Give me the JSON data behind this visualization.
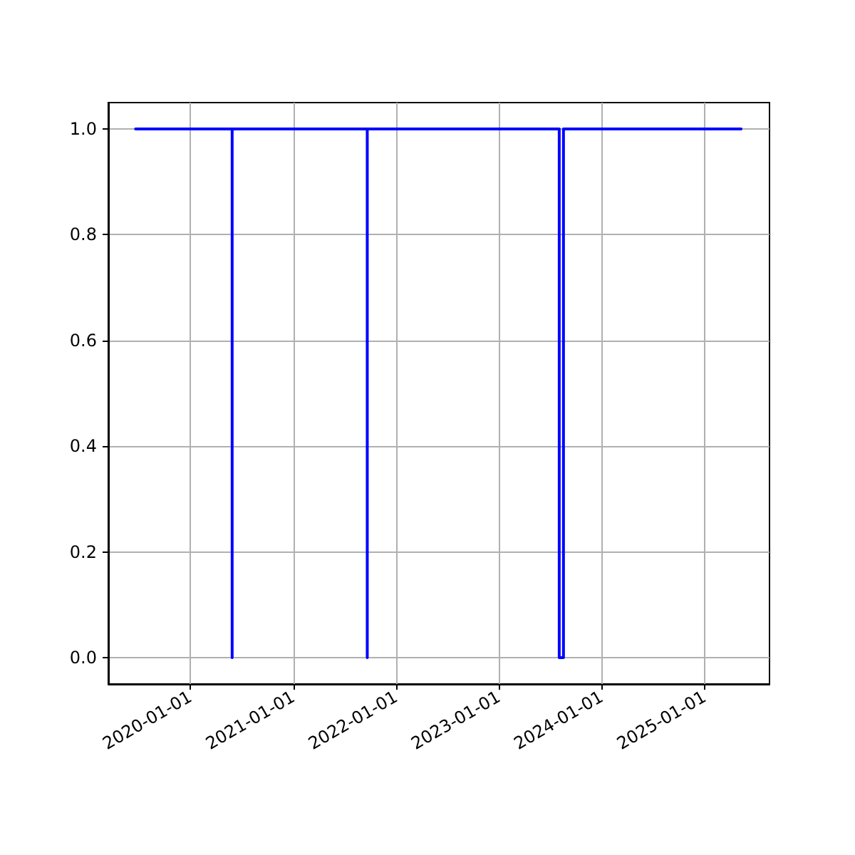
{
  "chart_data": {
    "type": "line",
    "x": [
      "2019-06-21",
      "2020-05-29",
      "2020-05-29",
      "2020-05-29",
      "2021-09-21",
      "2021-09-21",
      "2021-09-21",
      "2023-08-04",
      "2023-08-04",
      "2023-08-19",
      "2023-08-19",
      "2025-05-11"
    ],
    "series": [
      {
        "color": "#0000ff",
        "values": [
          1,
          1,
          0,
          1,
          1,
          0,
          1,
          1,
          0,
          0,
          1,
          1
        ]
      }
    ],
    "xlim": [
      "2019-03-16",
      "2025-08-20"
    ],
    "xticks": [
      "2020-01-01",
      "2021-01-01",
      "2022-01-01",
      "2023-01-01",
      "2024-01-01",
      "2025-01-01"
    ],
    "ylim": [
      -0.05,
      1.05
    ],
    "yticks": [
      {
        "value": 0,
        "label": "0.0"
      },
      {
        "value": 0.2,
        "label": "0.2"
      },
      {
        "value": 0.4,
        "label": "0.4"
      },
      {
        "value": 0.6,
        "label": "0.6"
      },
      {
        "value": 0.8,
        "label": "0.8"
      },
      {
        "value": 1,
        "label": "1.0"
      }
    ],
    "grid": true,
    "marker": "none",
    "line_style": "solid"
  }
}
